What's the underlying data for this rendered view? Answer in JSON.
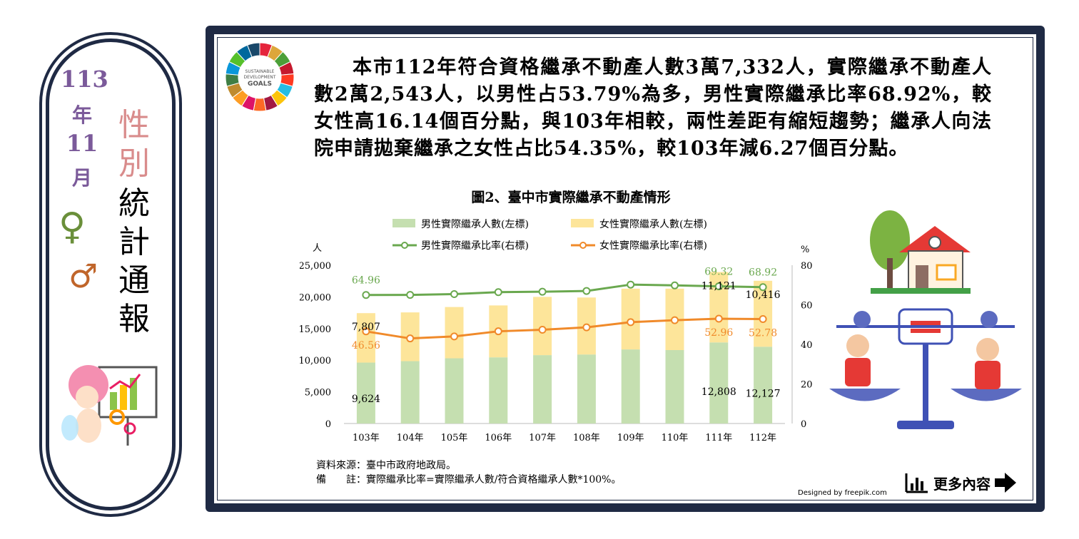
{
  "side": {
    "year": "113",
    "year_unit": "年",
    "month": "11",
    "month_unit": "月",
    "title_chars": [
      "性",
      "別",
      "統",
      "計",
      "通",
      "報"
    ],
    "female_symbol": "♀",
    "male_symbol": "♂"
  },
  "sdg_logo": {
    "line1": "SUSTAINABLE",
    "line2": "DEVELOPMENT",
    "line3": "GOALS"
  },
  "summary_text": "本市112年符合資格繼承不動產人數3萬7,332人，實際繼承不動產人數2萬2,543人，以男性占53.79%為多，男性實際繼承比率68.92%，較女性高16.14個百分點，與103年相較，兩性差距有縮短趨勢；繼承人向法院申請拋棄繼承之女性占比54.35%，較103年減6.27個百分點。",
  "chart_data": {
    "type": "bar",
    "title": "圖2、臺中市實際繼承不動產情形",
    "categories": [
      "103年",
      "104年",
      "105年",
      "106年",
      "107年",
      "108年",
      "109年",
      "110年",
      "111年",
      "112年"
    ],
    "left_axis": {
      "unit": "人",
      "ylim": [
        0,
        25000
      ],
      "ticks": [
        "0",
        "5,000",
        "10,000",
        "15,000",
        "20,000",
        "25,000"
      ],
      "tick_values": [
        0,
        5000,
        10000,
        15000,
        20000,
        25000
      ]
    },
    "right_axis": {
      "unit": "%",
      "ylim": [
        0,
        80
      ],
      "ticks": [
        "0",
        "20",
        "40",
        "60",
        "80"
      ],
      "tick_values": [
        0,
        20,
        40,
        60,
        80
      ]
    },
    "stacked_series": [
      {
        "name": "男性實際繼承人數(左標)",
        "color": "#c5dfb0",
        "values": [
          9624,
          9850,
          10300,
          10450,
          10800,
          10900,
          11700,
          11600,
          12808,
          12127
        ]
      },
      {
        "name": "女性實際繼承人數(左標)",
        "color": "#fde59a",
        "values": [
          7807,
          7700,
          8100,
          8200,
          9200,
          9000,
          9600,
          9700,
          11121,
          10416
        ]
      }
    ],
    "line_series": [
      {
        "name": "男性實際繼承比率(右標)",
        "color": "#6aa84f",
        "values": [
          64.96,
          65.0,
          65.4,
          66.4,
          66.6,
          67.0,
          70.2,
          69.8,
          69.32,
          68.92
        ]
      },
      {
        "name": "女性實際繼承比率(右標)",
        "color": "#f08a2a",
        "values": [
          46.56,
          43.0,
          44.0,
          46.6,
          47.4,
          48.6,
          51.2,
          52.2,
          52.96,
          52.78
        ]
      }
    ],
    "data_labels": [
      {
        "series": "男性實際繼承比率(右標)",
        "index": 0,
        "text": "64.96"
      },
      {
        "series": "男性實際繼承比率(右標)",
        "index": 8,
        "text": "69.32"
      },
      {
        "series": "男性實際繼承比率(右標)",
        "index": 9,
        "text": "68.92"
      },
      {
        "series": "女性實際繼承比率(右標)",
        "index": 0,
        "text": "46.56"
      },
      {
        "series": "女性實際繼承比率(右標)",
        "index": 8,
        "text": "52.96"
      },
      {
        "series": "女性實際繼承比率(右標)",
        "index": 9,
        "text": "52.78"
      },
      {
        "series": "女性實際繼承人數(左標)",
        "index": 0,
        "text": "7,807"
      },
      {
        "series": "女性實際繼承人數(左標)",
        "index": 8,
        "text": "11,121"
      },
      {
        "series": "女性實際繼承人數(左標)",
        "index": 9,
        "text": "10,416"
      },
      {
        "series": "男性實際繼承人數(左標)",
        "index": 0,
        "text": "9,624"
      },
      {
        "series": "男性實際繼承人數(左標)",
        "index": 8,
        "text": "12,808"
      },
      {
        "series": "男性實際繼承人數(左標)",
        "index": 9,
        "text": "12,127"
      }
    ],
    "legend_position": "top"
  },
  "notes": {
    "source": "資料來源：臺中市政府地政局。",
    "note": "備　　註：實際繼承比率=實際繼承人數/符合資格繼承人數*100%。"
  },
  "credit": "Designed by freepik.com",
  "more_button": {
    "label": "更多內容",
    "icon": "bar-chart-icon",
    "arrow_icon": "arrow-right-icon"
  }
}
